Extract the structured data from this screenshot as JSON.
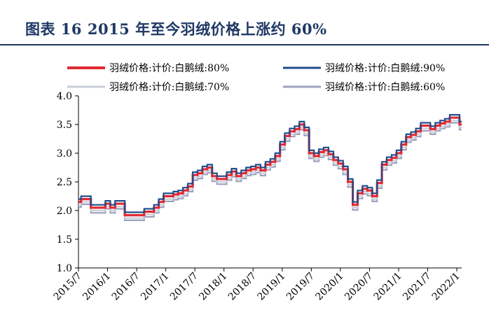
{
  "title": "图表 16   2015 年至今羽绒价格上涨约 60%",
  "chart_data": {
    "type": "line",
    "title": "图表 16   2015 年至今羽绒价格上涨约 60%",
    "xlabel": "",
    "ylabel": "",
    "ylim": [
      1.0,
      4.0
    ],
    "yticks": [
      "1.0",
      "1.5",
      "2.0",
      "2.5",
      "3.0",
      "3.5",
      "4.0"
    ],
    "xticks": [
      "2015/7",
      "2016/1",
      "2016/7",
      "2017/1",
      "2017/7",
      "2018/1",
      "2018/7",
      "2019/1",
      "2019/7",
      "2020/1",
      "2020/7",
      "2021/1",
      "2021/7",
      "2022/1"
    ],
    "legend_position": "top",
    "grid": false,
    "base_series": [
      [
        "2015/07",
        2.15
      ],
      [
        "2015/08",
        2.2
      ],
      [
        "2015/09",
        2.2
      ],
      [
        "2015/10",
        2.05
      ],
      [
        "2015/11",
        2.05
      ],
      [
        "2015/12",
        2.05
      ],
      [
        "2016/01",
        2.12
      ],
      [
        "2016/02",
        2.05
      ],
      [
        "2016/03",
        2.12
      ],
      [
        "2016/04",
        2.12
      ],
      [
        "2016/05",
        1.92
      ],
      [
        "2016/06",
        1.92
      ],
      [
        "2016/07",
        1.92
      ],
      [
        "2016/08",
        1.92
      ],
      [
        "2016/09",
        1.98
      ],
      [
        "2016/10",
        1.98
      ],
      [
        "2016/11",
        2.05
      ],
      [
        "2016/12",
        2.15
      ],
      [
        "2017/01",
        2.25
      ],
      [
        "2017/02",
        2.25
      ],
      [
        "2017/03",
        2.28
      ],
      [
        "2017/04",
        2.3
      ],
      [
        "2017/05",
        2.35
      ],
      [
        "2017/06",
        2.42
      ],
      [
        "2017/07",
        2.62
      ],
      [
        "2017/08",
        2.65
      ],
      [
        "2017/09",
        2.72
      ],
      [
        "2017/10",
        2.75
      ],
      [
        "2017/11",
        2.6
      ],
      [
        "2017/12",
        2.55
      ],
      [
        "2018/01",
        2.55
      ],
      [
        "2018/02",
        2.62
      ],
      [
        "2018/03",
        2.68
      ],
      [
        "2018/04",
        2.6
      ],
      [
        "2018/05",
        2.65
      ],
      [
        "2018/06",
        2.7
      ],
      [
        "2018/07",
        2.72
      ],
      [
        "2018/08",
        2.75
      ],
      [
        "2018/09",
        2.7
      ],
      [
        "2018/10",
        2.8
      ],
      [
        "2018/11",
        2.85
      ],
      [
        "2018/12",
        2.95
      ],
      [
        "2019/01",
        3.15
      ],
      [
        "2019/02",
        3.3
      ],
      [
        "2019/03",
        3.38
      ],
      [
        "2019/04",
        3.42
      ],
      [
        "2019/05",
        3.5
      ],
      [
        "2019/06",
        3.4
      ],
      [
        "2019/07",
        3.0
      ],
      [
        "2019/08",
        2.95
      ],
      [
        "2019/09",
        3.02
      ],
      [
        "2019/10",
        3.05
      ],
      [
        "2019/11",
        2.98
      ],
      [
        "2019/12",
        2.88
      ],
      [
        "2020/01",
        2.82
      ],
      [
        "2020/02",
        2.72
      ],
      [
        "2020/03",
        2.5
      ],
      [
        "2020/04",
        2.1
      ],
      [
        "2020/05",
        2.3
      ],
      [
        "2020/06",
        2.38
      ],
      [
        "2020/07",
        2.35
      ],
      [
        "2020/08",
        2.25
      ],
      [
        "2020/09",
        2.48
      ],
      [
        "2020/10",
        2.8
      ],
      [
        "2020/11",
        2.88
      ],
      [
        "2020/12",
        2.92
      ],
      [
        "2021/01",
        3.0
      ],
      [
        "2021/02",
        3.15
      ],
      [
        "2021/03",
        3.28
      ],
      [
        "2021/04",
        3.32
      ],
      [
        "2021/05",
        3.38
      ],
      [
        "2021/06",
        3.48
      ],
      [
        "2021/07",
        3.48
      ],
      [
        "2021/08",
        3.42
      ],
      [
        "2021/09",
        3.48
      ],
      [
        "2021/10",
        3.52
      ],
      [
        "2021/11",
        3.55
      ],
      [
        "2021/12",
        3.62
      ],
      [
        "2022/01",
        3.62
      ],
      [
        "2022/02",
        3.5
      ]
    ],
    "series": [
      {
        "name": "羽绒价格:计价:白鹅绒:80%",
        "color": "#e02a34",
        "offset": 0.0,
        "width": 3.2
      },
      {
        "name": "羽绒价格:计价:白鹅绒:90%",
        "color": "#1f4e8c",
        "offset": 0.05,
        "width": 2.2
      },
      {
        "name": "羽绒价格:计价:白鹅绒:70%",
        "color": "#c9ced8",
        "offset": -0.05,
        "width": 2.2
      },
      {
        "name": "羽绒价格:计价:白鹅绒:60%",
        "color": "#9ba2bd",
        "offset": -0.09,
        "width": 2.2
      }
    ]
  }
}
